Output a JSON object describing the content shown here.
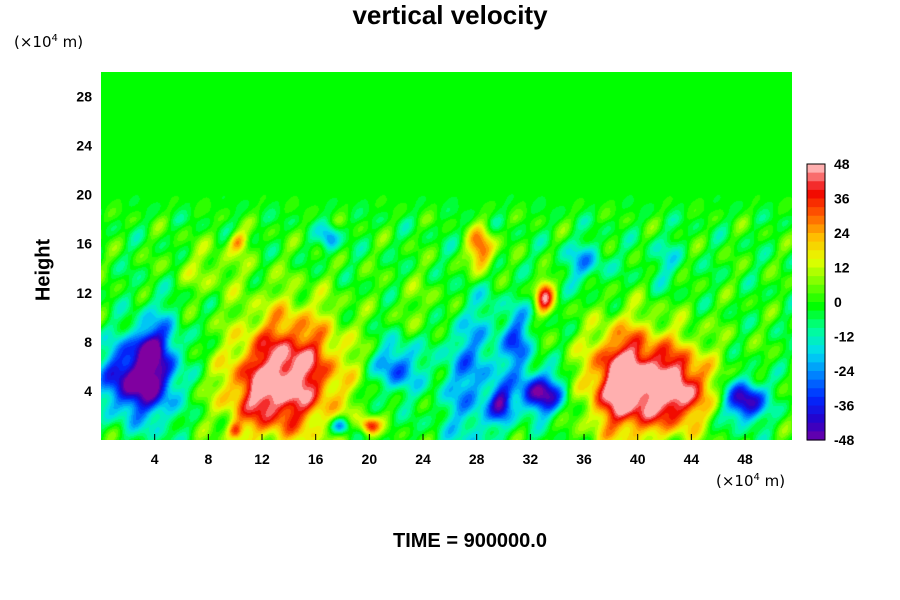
{
  "chart_data": {
    "type": "heatmap",
    "title": "vertical velocity",
    "ylabel": "Height",
    "x_unit": "(×10⁴ m)",
    "y_unit": "(×10⁴ m)",
    "xlim": [
      0,
      51.5
    ],
    "ylim": [
      0,
      30
    ],
    "x_ticks": [
      "4",
      "8",
      "12",
      "16",
      "20",
      "24",
      "28",
      "32",
      "36",
      "40",
      "44",
      "48"
    ],
    "y_ticks": [
      "4",
      "8",
      "12",
      "16",
      "20",
      "24",
      "28"
    ],
    "colorbar": {
      "range": [
        -48,
        48
      ],
      "ticks": [
        "48",
        "36",
        "24",
        "12",
        "0",
        "-12",
        "-24",
        "-36",
        "-48"
      ]
    },
    "features": [
      {
        "x": 2.0,
        "y": 5.0,
        "sx": 1.4,
        "sy": 2.0,
        "value": -44
      },
      {
        "x": 4.2,
        "y": 6.0,
        "sx": 1.2,
        "sy": 3.0,
        "value": -36
      },
      {
        "x": 3.4,
        "y": 7.8,
        "sx": 0.7,
        "sy": 0.8,
        "value": -18
      },
      {
        "x": 14.0,
        "y": 5.5,
        "sx": 2.8,
        "sy": 3.6,
        "value": 50
      },
      {
        "x": 11.5,
        "y": 3.5,
        "sx": 1.8,
        "sy": 2.0,
        "value": 18
      },
      {
        "x": 22.0,
        "y": 6.0,
        "sx": 1.1,
        "sy": 1.5,
        "value": -30
      },
      {
        "x": 27.5,
        "y": 5.5,
        "sx": 1.6,
        "sy": 5.0,
        "value": -22
      },
      {
        "x": 29.8,
        "y": 3.0,
        "sx": 0.6,
        "sy": 1.0,
        "value": -34
      },
      {
        "x": 32.8,
        "y": 3.8,
        "sx": 1.2,
        "sy": 1.2,
        "value": -46
      },
      {
        "x": 31.0,
        "y": 8.0,
        "sx": 0.8,
        "sy": 2.0,
        "value": -26
      },
      {
        "x": 28.3,
        "y": 15.5,
        "sx": 0.7,
        "sy": 1.3,
        "value": 38
      },
      {
        "x": 33.0,
        "y": 11.8,
        "sx": 0.5,
        "sy": 1.0,
        "value": 40
      },
      {
        "x": 39.0,
        "y": 4.5,
        "sx": 1.8,
        "sy": 3.0,
        "value": 48
      },
      {
        "x": 43.0,
        "y": 4.0,
        "sx": 1.5,
        "sy": 2.2,
        "value": 40
      },
      {
        "x": 41.0,
        "y": 5.5,
        "sx": 3.5,
        "sy": 3.0,
        "value": 16
      },
      {
        "x": 48.0,
        "y": 3.2,
        "sx": 1.0,
        "sy": 1.2,
        "value": -48
      },
      {
        "x": 20.0,
        "y": 1.2,
        "sx": 0.5,
        "sy": 0.5,
        "value": 36
      },
      {
        "x": 17.8,
        "y": 1.2,
        "sx": 0.5,
        "sy": 0.5,
        "value": -30
      },
      {
        "x": 10.0,
        "y": 0.8,
        "sx": 0.4,
        "sy": 0.5,
        "value": 24
      },
      {
        "x": 10.2,
        "y": 16.2,
        "sx": 0.5,
        "sy": 0.6,
        "value": 24
      },
      {
        "x": 17.0,
        "y": 16.5,
        "sx": 0.5,
        "sy": 0.8,
        "value": -24
      },
      {
        "x": 36.0,
        "y": 14.5,
        "sx": 1.2,
        "sy": 1.2,
        "value": -18
      },
      {
        "x": 42.0,
        "y": 14.5,
        "sx": 1.0,
        "sy": 1.5,
        "value": -10
      },
      {
        "x": 8.0,
        "y": 14.0,
        "sx": 2.0,
        "sy": 1.5,
        "value": 10
      },
      {
        "x": 25.0,
        "y": 11.0,
        "sx": 2.0,
        "sy": 2.0,
        "value": 8
      }
    ]
  },
  "time_label": "TIME = 900000.0",
  "colors": {
    "background": "#ffffff",
    "field_zero": "#00ff00"
  }
}
